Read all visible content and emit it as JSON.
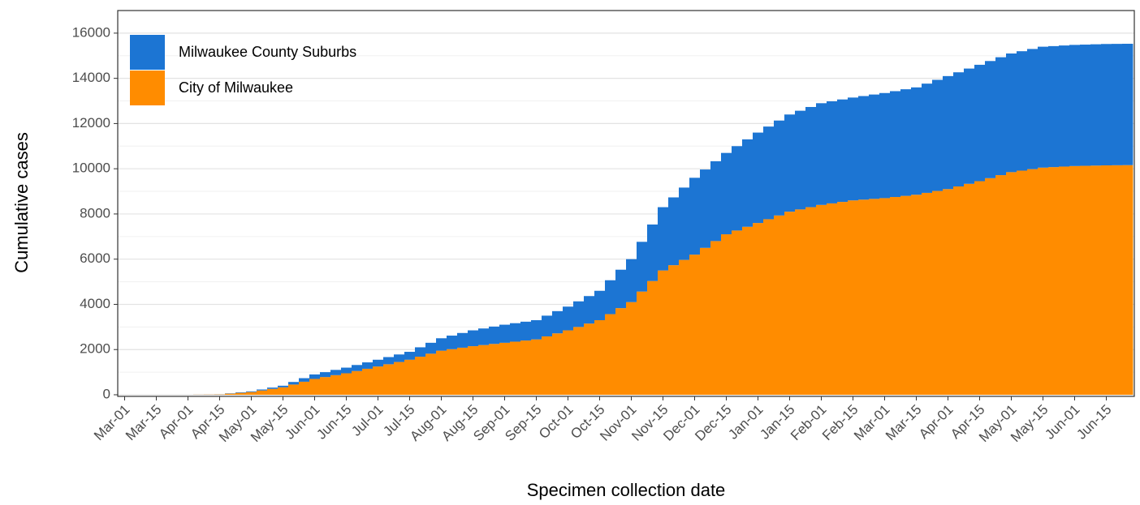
{
  "chart_data": {
    "type": "bar",
    "stacked": true,
    "x_label": "Specimen collection date",
    "y_label": "Cumulative cases",
    "categories": [
      "Mar-01",
      null,
      null,
      "Mar-15",
      null,
      null,
      "Apr-01",
      null,
      null,
      "Apr-15",
      null,
      null,
      "May-01",
      null,
      null,
      "May-15",
      null,
      null,
      "Jun-01",
      null,
      null,
      "Jun-15",
      null,
      null,
      "Jul-01",
      null,
      null,
      "Jul-15",
      null,
      null,
      "Aug-01",
      null,
      null,
      "Aug-15",
      null,
      null,
      "Sep-01",
      null,
      null,
      "Sep-15",
      null,
      null,
      "Oct-01",
      null,
      null,
      "Oct-15",
      null,
      null,
      "Nov-01",
      null,
      null,
      "Nov-15",
      null,
      null,
      "Dec-01",
      null,
      null,
      "Dec-15",
      null,
      null,
      "Jan-01",
      null,
      null,
      "Jan-15",
      null,
      null,
      "Feb-01",
      null,
      null,
      "Feb-15",
      null,
      null,
      "Mar-01",
      null,
      null,
      "Mar-15",
      null,
      null,
      "Apr-01",
      null,
      null,
      "Apr-15",
      null,
      null,
      "May-01",
      null,
      null,
      "May-15",
      null,
      null,
      "Jun-01",
      null,
      null,
      "Jun-15",
      null,
      null
    ],
    "series": [
      {
        "name": "Milwaukee County Suburbs",
        "color": "#1c75d3",
        "values": [
          0,
          0,
          0,
          0,
          0,
          0,
          0,
          2,
          3,
          5,
          13,
          22,
          30,
          43,
          57,
          70,
          113,
          157,
          200,
          217,
          233,
          250,
          267,
          283,
          300,
          317,
          333,
          350,
          417,
          483,
          550,
          600,
          650,
          700,
          733,
          767,
          800,
          817,
          833,
          850,
          917,
          983,
          1050,
          1133,
          1217,
          1300,
          1500,
          1700,
          1900,
          2200,
          2500,
          2800,
          3000,
          3200,
          3400,
          3467,
          3533,
          3600,
          3733,
          3867,
          4000,
          4100,
          4200,
          4300,
          4367,
          4433,
          4500,
          4517,
          4533,
          4550,
          4583,
          4617,
          4650,
          4683,
          4717,
          4750,
          4833,
          4917,
          5000,
          5050,
          5100,
          5150,
          5183,
          5217,
          5250,
          5283,
          5317,
          5350,
          5353,
          5357,
          5360,
          5363,
          5367,
          5370,
          5370,
          5370
        ]
      },
      {
        "name": "City of Milwaukee",
        "color": "#ff8c00",
        "values": [
          0,
          0,
          0,
          0,
          0,
          0,
          0,
          5,
          10,
          15,
          50,
          85,
          120,
          190,
          260,
          330,
          453,
          577,
          700,
          783,
          867,
          950,
          1050,
          1150,
          1250,
          1350,
          1450,
          1550,
          1683,
          1817,
          1950,
          2017,
          2083,
          2150,
          2200,
          2250,
          2300,
          2350,
          2400,
          2450,
          2583,
          2717,
          2850,
          3000,
          3150,
          3300,
          3567,
          3833,
          4100,
          4567,
          5033,
          5500,
          5733,
          5967,
          6200,
          6500,
          6800,
          7100,
          7267,
          7433,
          7600,
          7767,
          7933,
          8100,
          8200,
          8300,
          8400,
          8467,
          8533,
          8600,
          8633,
          8667,
          8700,
          8750,
          8800,
          8850,
          8933,
          9017,
          9100,
          9217,
          9333,
          9450,
          9583,
          9717,
          9850,
          9917,
          9983,
          10050,
          10073,
          10097,
          10120,
          10130,
          10140,
          10150,
          10155,
          10160
        ]
      }
    ],
    "ylim": [
      0,
      17000
    ],
    "yticks": [
      0,
      2000,
      4000,
      6000,
      8000,
      10000,
      12000,
      14000,
      16000
    ],
    "grid": true,
    "legend": "top-left"
  }
}
